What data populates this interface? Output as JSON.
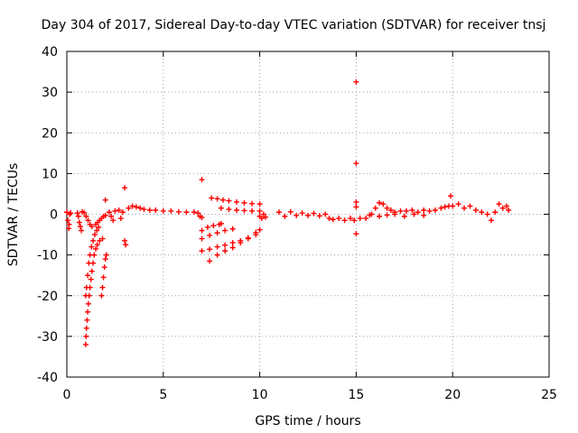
{
  "chart_data": {
    "type": "scatter",
    "title": "Day 304 of 2017, Sidereal Day-to-day VTEC variation (SDTVAR) for receiver tnsj",
    "xlabel": "GPS time / hours",
    "ylabel": "SDTVAR / TECUs",
    "xlim": [
      0,
      25
    ],
    "ylim": [
      -40,
      40
    ],
    "xticks": [
      "0",
      "5",
      "10",
      "15",
      "20",
      "25"
    ],
    "yticks": [
      "-40",
      "-30",
      "-20",
      "-10",
      "0",
      "10",
      "20",
      "30",
      "40"
    ],
    "grid": true,
    "marker": "plus",
    "series_color": "#ff0000",
    "series": [
      {
        "name": "SDTVAR",
        "points": [
          [
            0.0,
            0.5
          ],
          [
            0.05,
            -1.5
          ],
          [
            0.1,
            -3.5
          ],
          [
            0.12,
            -2.5
          ],
          [
            0.15,
            0.0
          ],
          [
            0.2,
            0.3
          ],
          [
            0.55,
            0.3
          ],
          [
            0.6,
            -0.5
          ],
          [
            0.65,
            -2.0
          ],
          [
            0.7,
            -3.0
          ],
          [
            0.75,
            -4.0
          ],
          [
            0.8,
            0.6
          ],
          [
            0.9,
            0.4
          ],
          [
            1.0,
            -0.5
          ],
          [
            1.1,
            -1.5
          ],
          [
            1.2,
            -2.5
          ],
          [
            1.3,
            -3.0
          ],
          [
            1.5,
            -2.5
          ],
          [
            1.6,
            -2.0
          ],
          [
            1.7,
            -1.5
          ],
          [
            1.8,
            -1.0
          ],
          [
            1.9,
            -0.5
          ],
          [
            2.0,
            -0.3
          ],
          [
            0.98,
            -32.0
          ],
          [
            1.0,
            -30.0
          ],
          [
            1.02,
            -28.0
          ],
          [
            1.05,
            -26.0
          ],
          [
            1.08,
            -24.0
          ],
          [
            1.12,
            -22.0
          ],
          [
            1.16,
            -20.0
          ],
          [
            1.2,
            -18.0
          ],
          [
            1.25,
            -16.0
          ],
          [
            1.3,
            -14.0
          ],
          [
            1.36,
            -12.0
          ],
          [
            1.42,
            -10.0
          ],
          [
            1.5,
            -8.5
          ],
          [
            1.58,
            -7.5
          ],
          [
            1.7,
            -6.5
          ],
          [
            1.85,
            -6.0
          ],
          [
            0.98,
            -20.0
          ],
          [
            1.02,
            -18.0
          ],
          [
            1.08,
            -15.0
          ],
          [
            1.14,
            -12.0
          ],
          [
            1.2,
            -10.0
          ],
          [
            1.28,
            -8.0
          ],
          [
            1.36,
            -6.5
          ],
          [
            1.45,
            -5.0
          ],
          [
            1.55,
            -4.0
          ],
          [
            1.65,
            -3.2
          ],
          [
            1.8,
            -20.0
          ],
          [
            1.85,
            -18.0
          ],
          [
            1.9,
            -15.5
          ],
          [
            1.95,
            -13.0
          ],
          [
            2.0,
            -11.0
          ],
          [
            2.05,
            -10.0
          ],
          [
            2.0,
            3.5
          ],
          [
            2.2,
            0.5
          ],
          [
            2.3,
            -0.5
          ],
          [
            2.4,
            -1.5
          ],
          [
            2.5,
            0.8
          ],
          [
            2.7,
            1.0
          ],
          [
            2.8,
            -1.0
          ],
          [
            2.9,
            0.5
          ],
          [
            3.0,
            6.5
          ],
          [
            3.0,
            -6.5
          ],
          [
            3.05,
            -7.5
          ],
          [
            3.2,
            1.5
          ],
          [
            3.4,
            2.0
          ],
          [
            3.6,
            1.8
          ],
          [
            3.8,
            1.5
          ],
          [
            4.0,
            1.2
          ],
          [
            4.3,
            1.0
          ],
          [
            4.6,
            1.0
          ],
          [
            5.0,
            0.8
          ],
          [
            5.4,
            0.8
          ],
          [
            5.8,
            0.6
          ],
          [
            6.2,
            0.5
          ],
          [
            6.6,
            0.5
          ],
          [
            6.8,
            0.3
          ],
          [
            6.9,
            -0.5
          ],
          [
            7.0,
            -0.8
          ],
          [
            7.0,
            8.5
          ],
          [
            7.0,
            -4.0
          ],
          [
            7.3,
            -3.2
          ],
          [
            7.6,
            -2.8
          ],
          [
            7.9,
            -2.5
          ],
          [
            8.0,
            -2.3
          ],
          [
            7.0,
            -6.0
          ],
          [
            7.4,
            -5.2
          ],
          [
            7.8,
            -4.6
          ],
          [
            8.2,
            -4.0
          ],
          [
            8.6,
            -3.6
          ],
          [
            7.0,
            -9.0
          ],
          [
            7.4,
            -8.6
          ],
          [
            7.8,
            -8.0
          ],
          [
            8.2,
            -7.6
          ],
          [
            8.6,
            -7.0
          ],
          [
            9.0,
            -6.5
          ],
          [
            9.4,
            -5.8
          ],
          [
            9.8,
            -5.0
          ],
          [
            7.4,
            -11.5
          ],
          [
            7.8,
            -10.0
          ],
          [
            8.2,
            -9.0
          ],
          [
            8.6,
            -8.2
          ],
          [
            9.0,
            -7.0
          ],
          [
            9.4,
            -6.0
          ],
          [
            9.8,
            -4.5
          ],
          [
            10.0,
            -3.8
          ],
          [
            7.5,
            4.0
          ],
          [
            7.8,
            3.8
          ],
          [
            8.1,
            3.5
          ],
          [
            8.4,
            3.3
          ],
          [
            8.8,
            3.0
          ],
          [
            9.2,
            2.8
          ],
          [
            9.6,
            2.6
          ],
          [
            10.0,
            2.5
          ],
          [
            8.0,
            1.5
          ],
          [
            8.4,
            1.2
          ],
          [
            8.8,
            1.0
          ],
          [
            9.2,
            0.9
          ],
          [
            9.6,
            0.8
          ],
          [
            10.0,
            0.8
          ],
          [
            10.0,
            -0.5
          ],
          [
            10.1,
            -1.0
          ],
          [
            10.2,
            0.0
          ],
          [
            10.3,
            -0.7
          ],
          [
            11.0,
            0.5
          ],
          [
            11.3,
            -0.5
          ],
          [
            11.6,
            0.6
          ],
          [
            11.9,
            -0.3
          ],
          [
            12.2,
            0.3
          ],
          [
            12.5,
            -0.3
          ],
          [
            12.8,
            0.2
          ],
          [
            13.1,
            -0.4
          ],
          [
            13.4,
            0.0
          ],
          [
            13.6,
            -1.0
          ],
          [
            13.8,
            -1.3
          ],
          [
            14.1,
            -1.0
          ],
          [
            14.4,
            -1.5
          ],
          [
            14.7,
            -1.0
          ],
          [
            14.9,
            -1.5
          ],
          [
            15.0,
            32.5
          ],
          [
            15.0,
            12.5
          ],
          [
            15.0,
            3.0
          ],
          [
            15.0,
            1.8
          ],
          [
            15.0,
            -4.8
          ],
          [
            15.2,
            -1.0
          ],
          [
            15.5,
            -1.0
          ],
          [
            15.7,
            -0.2
          ],
          [
            15.8,
            0.0
          ],
          [
            16.0,
            1.5
          ],
          [
            16.2,
            2.8
          ],
          [
            16.4,
            2.5
          ],
          [
            16.6,
            1.5
          ],
          [
            16.8,
            1.0
          ],
          [
            17.0,
            0.5
          ],
          [
            17.3,
            0.8
          ],
          [
            17.6,
            0.8
          ],
          [
            17.9,
            1.0
          ],
          [
            18.2,
            0.5
          ],
          [
            18.5,
            1.0
          ],
          [
            18.8,
            0.8
          ],
          [
            19.1,
            1.0
          ],
          [
            19.4,
            1.5
          ],
          [
            19.6,
            1.8
          ],
          [
            19.8,
            2.0
          ],
          [
            16.2,
            -0.5
          ],
          [
            16.6,
            -0.2
          ],
          [
            17.0,
            0.0
          ],
          [
            17.5,
            -0.5
          ],
          [
            18.0,
            0.0
          ],
          [
            18.5,
            -0.3
          ],
          [
            19.9,
            4.5
          ],
          [
            20.0,
            2.0
          ],
          [
            20.3,
            2.5
          ],
          [
            20.6,
            1.5
          ],
          [
            20.9,
            2.0
          ],
          [
            21.2,
            1.0
          ],
          [
            21.5,
            0.5
          ],
          [
            21.8,
            0.0
          ],
          [
            22.0,
            -1.5
          ],
          [
            22.2,
            0.5
          ],
          [
            22.4,
            2.5
          ],
          [
            22.6,
            1.5
          ],
          [
            22.8,
            2.0
          ],
          [
            22.9,
            1.0
          ]
        ]
      }
    ]
  }
}
